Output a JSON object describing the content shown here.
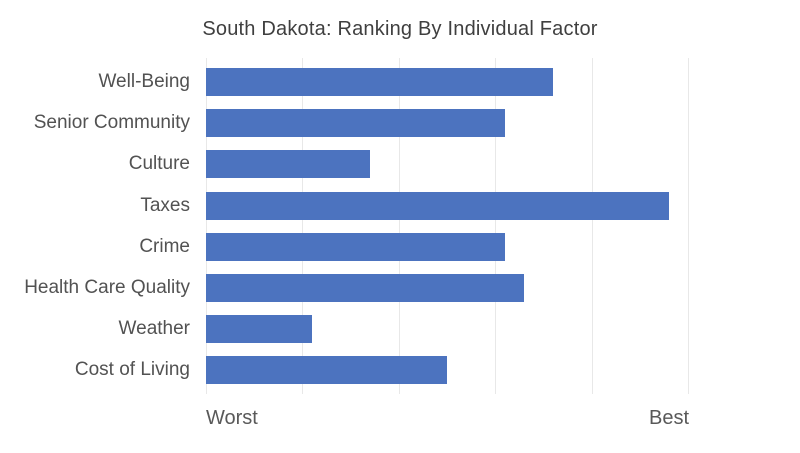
{
  "chart_data": {
    "type": "bar",
    "orientation": "horizontal",
    "title": "South Dakota: Ranking By Individual Factor",
    "categories": [
      "Well-Being",
      "Senior Community",
      "Culture",
      "Taxes",
      "Crime",
      "Health Care Quality",
      "Weather",
      "Cost of Living"
    ],
    "values": [
      36,
      31,
      17,
      48,
      31,
      33,
      11,
      25
    ],
    "xlim": [
      0,
      50
    ],
    "gridline_ticks": [
      0,
      10,
      20,
      30,
      40,
      50
    ],
    "x_tick_labels": [
      "Worst",
      "Best"
    ],
    "grid": true,
    "legend": false,
    "data_labels": false
  },
  "axis": {
    "worst_label": "Worst",
    "best_label": "Best"
  },
  "colors": {
    "bar": "#4C73BF",
    "gridline": "#E8E8E8",
    "title_text": "#3F3F3F",
    "category_text": "#525252",
    "axis_label_text": "#595959",
    "background": "#FFFFFF"
  }
}
